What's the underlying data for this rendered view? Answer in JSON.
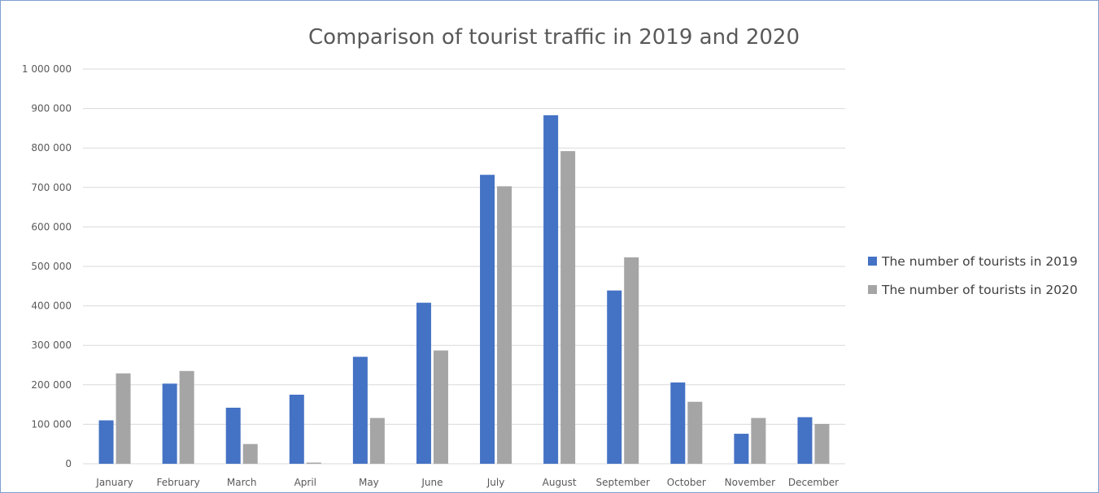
{
  "chart_data": {
    "type": "bar",
    "title": "Comparison of tourist traffic in 2019 and 2020",
    "xlabel": "",
    "ylabel": "",
    "categories": [
      "January",
      "February",
      "March",
      "April",
      "May",
      "June",
      "July",
      "August",
      "September",
      "October",
      "November",
      "December"
    ],
    "series": [
      {
        "name": "The number of tourists in 2019",
        "color": "#4472c4",
        "values": [
          110000,
          203000,
          142000,
          175000,
          271000,
          408000,
          732000,
          883000,
          439000,
          206000,
          76000,
          118000
        ]
      },
      {
        "name": "The number of tourists in 2020",
        "color": "#a5a5a5",
        "values": [
          229000,
          235000,
          50000,
          3000,
          116000,
          287000,
          703000,
          792000,
          523000,
          157000,
          116000,
          101000
        ]
      }
    ],
    "ylim": [
      0,
      1000000
    ],
    "yticks": [
      0,
      100000,
      200000,
      300000,
      400000,
      500000,
      600000,
      700000,
      800000,
      900000,
      1000000
    ],
    "ytick_labels": [
      "0",
      "100 000",
      "200 000",
      "300 000",
      "400 000",
      "500 000",
      "600 000",
      "700 000",
      "800 000",
      "900 000",
      "1 000 000"
    ],
    "grid": true,
    "legend_position": "right"
  }
}
